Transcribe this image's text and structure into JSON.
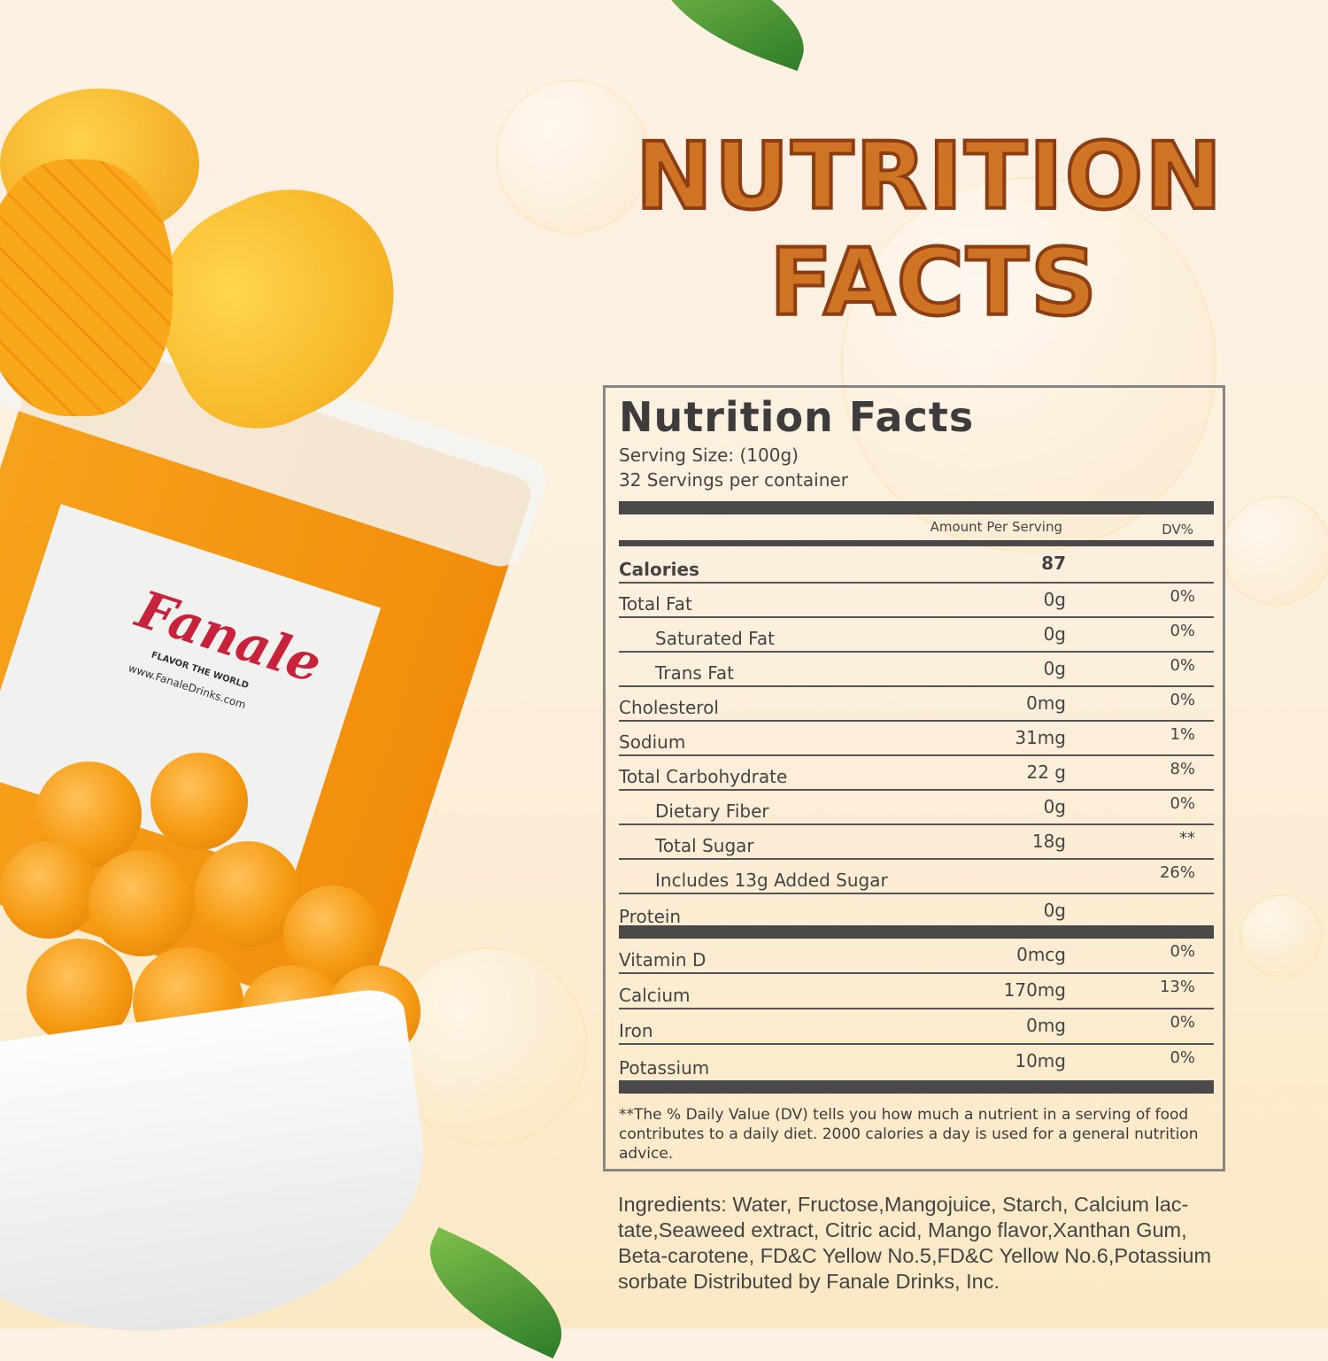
{
  "hero_title": [
    "NUTRITION",
    "FACTS"
  ],
  "colors": {
    "title_fill": "#cf7424",
    "title_stroke": "#8d3d12",
    "bar": "#4a4848",
    "brand_red": "#c8233a"
  },
  "product": {
    "brand": "Fanale",
    "tagline": "FLAVOR THE WORLD",
    "website": "www.FanaleDrinks.com"
  },
  "panel": {
    "title": "Nutrition Facts",
    "serving_size": "Serving Size:  (100g)",
    "servings": "32 Servings per container",
    "col_amount": "Amount Per Serving",
    "col_dv": "DV%",
    "rows": [
      {
        "name": "Calories",
        "amount": "87",
        "dv": "",
        "bold": true
      },
      {
        "name": "Total Fat",
        "amount": "0g",
        "dv": "0%"
      },
      {
        "name": "Saturated Fat",
        "amount": "0g",
        "dv": "0%",
        "indent": true
      },
      {
        "name": "Trans Fat",
        "amount": "0g",
        "dv": "0%",
        "indent": true
      },
      {
        "name": "Cholesterol",
        "amount": "0mg",
        "dv": "0%"
      },
      {
        "name": "Sodium",
        "amount": "31mg",
        "dv": "1%"
      },
      {
        "name": "Total Carbohydrate",
        "amount": "22 g",
        "dv": "8%"
      },
      {
        "name": "Dietary Fiber",
        "amount": "0g",
        "dv": "0%",
        "indent": true
      },
      {
        "name": "Total Sugar",
        "amount": "18g",
        "dv": "**",
        "indent": true
      },
      {
        "name": "Includes 13g Added Sugar",
        "amount": "",
        "dv": "26%",
        "indent": true
      },
      {
        "name": "Protein",
        "amount": "0g",
        "dv": ""
      }
    ],
    "minerals": [
      {
        "name": "Vitamin D",
        "amount": "0mcg",
        "dv": "0%"
      },
      {
        "name": "Calcium",
        "amount": "170mg",
        "dv": "13%"
      },
      {
        "name": "Iron",
        "amount": "0mg",
        "dv": "0%"
      },
      {
        "name": "Potassium",
        "amount": "10mg",
        "dv": "0%"
      }
    ],
    "footnote": "**The % Daily Value (DV) tells you how much a nutrient in a serving of food contributes to a daily diet. 2000 calories a  day is used for a general nutrition advice."
  },
  "ingredients": "Ingredients: Water, Fructose,Mangojuice, Starch, Calcium lac-tate,Seaweed extract, Citric acid, Mango flavor,Xanthan Gum, Beta-carotene, FD&C Yellow No.5,FD&C Yellow No.6,Potassium sorbate Distributed by Fanale Drinks, Inc."
}
